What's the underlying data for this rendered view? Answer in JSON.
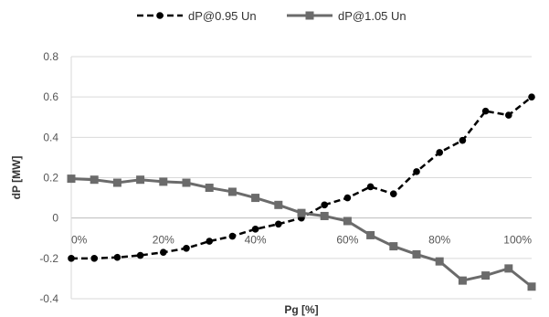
{
  "chart_data": {
    "type": "line",
    "xlabel": "Pg [%]",
    "ylabel": "dP [MW]",
    "x": [
      0,
      5,
      10,
      15,
      20,
      25,
      30,
      35,
      40,
      45,
      50,
      55,
      60,
      65,
      70,
      75,
      80,
      85,
      90,
      95,
      100
    ],
    "x_tick_values": [
      0,
      20,
      40,
      60,
      80,
      100
    ],
    "x_tick_labels": [
      "0%",
      "20%",
      "40%",
      "60%",
      "80%",
      "100%"
    ],
    "xlim": [
      0,
      100
    ],
    "y_tick_values": [
      -0.4,
      -0.2,
      0,
      0.2,
      0.4,
      0.6,
      0.8
    ],
    "y_tick_labels": [
      "-0.4",
      "-0.2",
      "0",
      "0.2",
      "0.4",
      "0.6",
      "0.8"
    ],
    "ylim": [
      -0.4,
      0.8
    ],
    "grid": "horizontal",
    "legend_position": "top",
    "series": [
      {
        "name": "dP@0.95 Un",
        "color": "#000000",
        "line_style": "dashed",
        "marker": "circle",
        "values": [
          -0.2,
          -0.2,
          -0.195,
          -0.185,
          -0.17,
          -0.15,
          -0.115,
          -0.09,
          -0.055,
          -0.03,
          0.0,
          0.065,
          0.1,
          0.155,
          0.12,
          0.23,
          0.325,
          0.385,
          0.53,
          0.51,
          0.6
        ]
      },
      {
        "name": "dP@1.05 Un",
        "color": "#6b6b6b",
        "line_style": "solid",
        "marker": "square",
        "values": [
          0.195,
          0.19,
          0.175,
          0.19,
          0.18,
          0.175,
          0.15,
          0.13,
          0.1,
          0.065,
          0.025,
          0.01,
          -0.015,
          -0.085,
          -0.14,
          -0.18,
          -0.215,
          -0.31,
          -0.285,
          -0.25,
          -0.34
        ]
      }
    ]
  }
}
